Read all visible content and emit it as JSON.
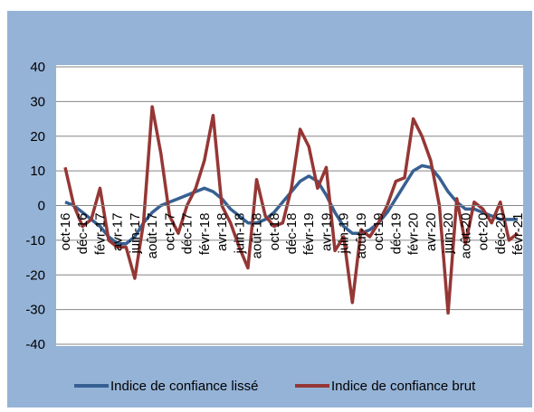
{
  "chart_data": {
    "type": "line",
    "categories": [
      "oct-16",
      null,
      "déc-16",
      null,
      "févr-17",
      null,
      "avr-17",
      null,
      "juin-17",
      null,
      "août-17",
      null,
      "oct-17",
      null,
      "déc-17",
      null,
      "févr-18",
      null,
      "avr-18",
      null,
      "juin-18",
      null,
      "août-18",
      null,
      "oct-18",
      null,
      "déc-18",
      null,
      "févr-19",
      null,
      "avr-19",
      null,
      "juin-19",
      null,
      "août-19",
      null,
      "oct-19",
      null,
      "déc-19",
      null,
      "févr-20",
      null,
      "avr-20",
      null,
      "juin-20",
      null,
      "août-20",
      null,
      "oct-20",
      null,
      "déc-20",
      null,
      "févr-21"
    ],
    "series": [
      {
        "name": "Indice de confiance lissé",
        "color": "#376092",
        "values": [
          1,
          0,
          -2,
          -4,
          -6,
          -9,
          -11,
          -11,
          -9,
          -5,
          -2,
          0,
          1,
          2,
          3,
          4,
          5,
          4,
          2,
          -1,
          -3,
          -5,
          -5,
          -4,
          -2,
          1,
          4,
          7,
          8.5,
          7,
          3,
          -2,
          -6,
          -8,
          -8,
          -7,
          -5,
          -2,
          2,
          6,
          10,
          11.5,
          11,
          8,
          4,
          1,
          -1,
          -1,
          -2,
          -3,
          -4,
          -4,
          -4
        ]
      },
      {
        "name": "Indice de confiance brut",
        "color": "#953735",
        "values": [
          11,
          0,
          -6,
          -4,
          5,
          -10,
          -12,
          -12,
          -21,
          -5,
          28.5,
          15,
          -3,
          -8,
          0,
          5,
          13,
          26,
          0,
          -5,
          -12,
          -18,
          7.5,
          -3,
          -6,
          -5,
          5,
          22,
          17,
          5,
          11,
          -13,
          -9,
          -28,
          -7,
          -9,
          -5,
          0,
          7,
          8,
          25,
          20,
          13,
          0,
          -31,
          2,
          -11,
          1,
          -1,
          -5,
          1,
          -10,
          -8
        ]
      }
    ],
    "ylim": [
      -40,
      40
    ],
    "yticks": [
      -40,
      -30,
      -20,
      -10,
      0,
      10,
      20,
      30,
      40
    ],
    "grid": true,
    "legend": "bottom"
  }
}
